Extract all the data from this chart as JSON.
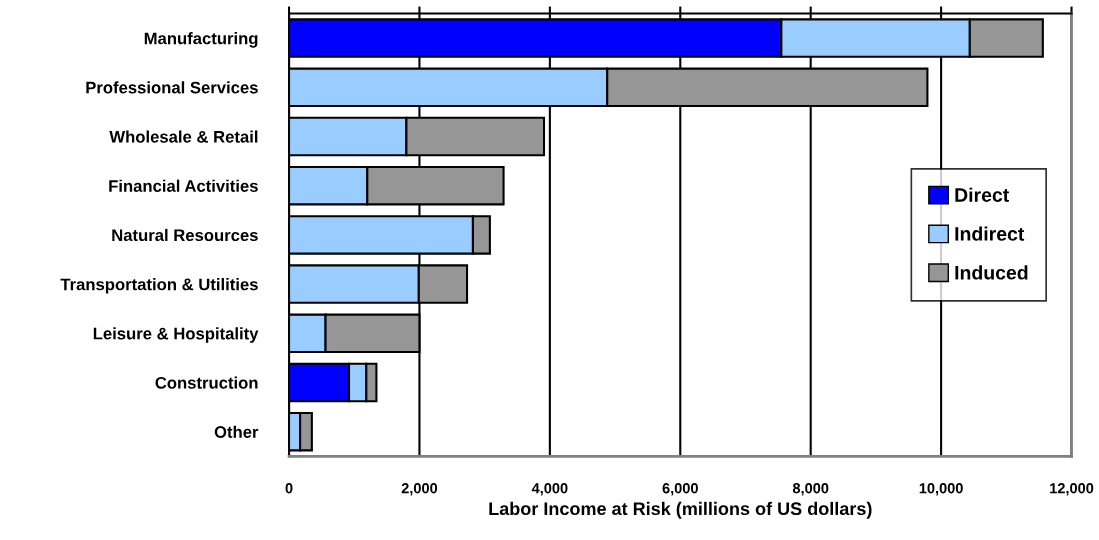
{
  "chart_data": {
    "type": "bar",
    "orientation": "horizontal",
    "stacked": true,
    "categories": [
      "Manufacturing",
      "Professional Services",
      "Wholesale & Retail",
      "Financial Activities",
      "Natural Resources",
      "Transportation & Utilities",
      "Leisure & Hospitality",
      "Construction",
      "Other"
    ],
    "series": [
      {
        "name": "Direct",
        "color": "#0000ff",
        "values": [
          7550,
          0,
          0,
          0,
          0,
          0,
          0,
          920,
          0
        ]
      },
      {
        "name": "Indirect",
        "color": "#99ccff",
        "values": [
          2890,
          4880,
          1800,
          1200,
          2820,
          1990,
          560,
          265,
          170
        ]
      },
      {
        "name": "Induced",
        "color": "#969696",
        "values": [
          1120,
          4910,
          2110,
          2090,
          260,
          740,
          1440,
          155,
          180
        ]
      }
    ],
    "xlabel": "Labor Income at Risk (millions of US dollars)",
    "xlim": [
      0,
      12000
    ],
    "xticks": [
      0,
      {
        "value": 2000,
        "label": "2,000"
      },
      {
        "value": 4000,
        "label": "4,000"
      },
      {
        "value": 6000,
        "label": "6,000"
      },
      {
        "value": 8000,
        "label": "8,000"
      },
      {
        "value": 10000,
        "label": "10,000"
      },
      {
        "value": 12000,
        "label": "12,000"
      }
    ],
    "grid": "x",
    "legend": "center right"
  }
}
